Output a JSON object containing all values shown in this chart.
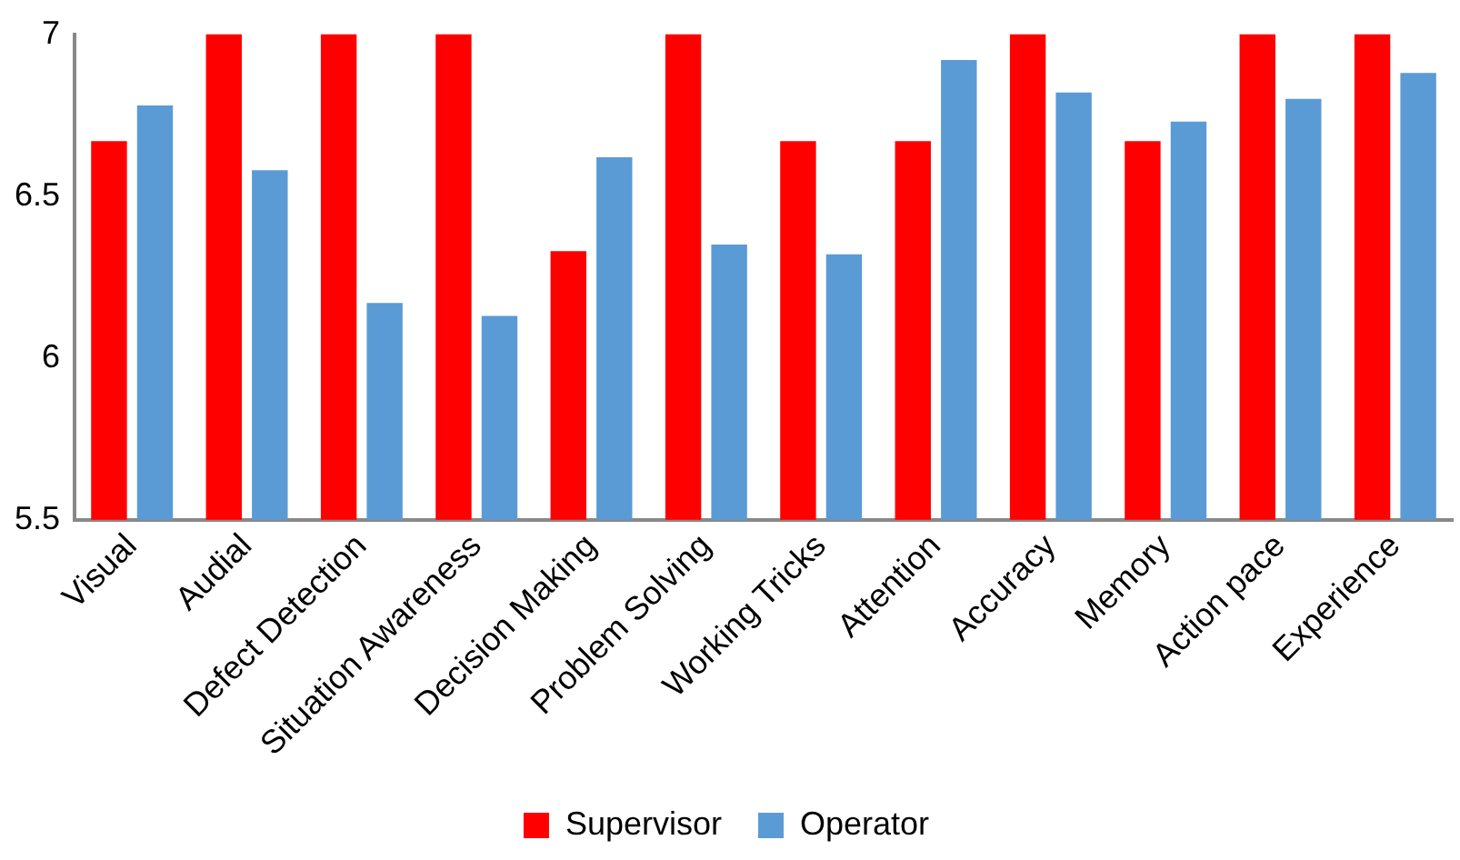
{
  "chart_data": {
    "type": "bar",
    "categories": [
      "Visual",
      "Audial",
      "Defect Detection",
      "Situation Awareness",
      "Decision Making",
      "Problem Solving",
      "Working Tricks",
      "Attention",
      "Accuracy",
      "Memory",
      "Action pace",
      "Experience"
    ],
    "series": [
      {
        "name": "Supervisor",
        "color": "#ff0000",
        "values": [
          6.67,
          7,
          7,
          7,
          6.33,
          7,
          6.67,
          6.67,
          7,
          6.67,
          7,
          7
        ]
      },
      {
        "name": "Operator",
        "color": "#5b9bd5",
        "values": [
          6.78,
          6.58,
          6.17,
          6.13,
          6.62,
          6.35,
          6.32,
          6.92,
          6.82,
          6.73,
          6.8,
          6.88
        ]
      }
    ],
    "ylim": [
      5.5,
      7
    ],
    "yticks": [
      5.5,
      6,
      6.5,
      7
    ],
    "grid": false,
    "legend": "bottom"
  }
}
